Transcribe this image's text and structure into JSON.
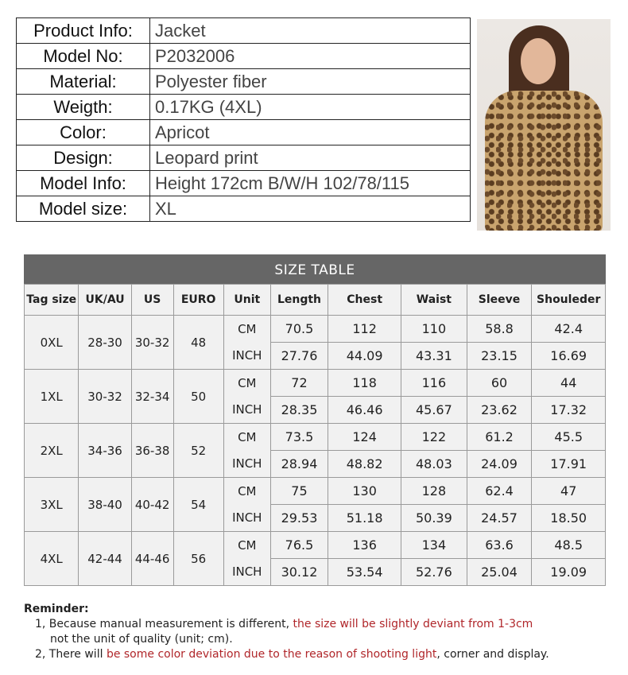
{
  "product_info": [
    {
      "label": "Product Info:",
      "value": "Jacket"
    },
    {
      "label": "Model No:",
      "value": "P2032006"
    },
    {
      "label": "Material:",
      "value": "Polyester fiber"
    },
    {
      "label": "Weigth:",
      "value": "0.17KG (4XL)"
    },
    {
      "label": "Color:",
      "value": "Apricot"
    },
    {
      "label": "Design:",
      "value": "Leopard print"
    },
    {
      "label": "Model Info:",
      "value": "Height 172cm  B/W/H 102/78/115"
    },
    {
      "label": "Model size:",
      "value": "XL"
    }
  ],
  "size_table": {
    "title": "SIZE TABLE",
    "headers": [
      "Tag size",
      "UK/AU",
      "US",
      "EURO",
      "Unit",
      "Length",
      "Chest",
      "Waist",
      "Sleeve",
      "Shouleder"
    ],
    "units": [
      "CM",
      "INCH"
    ],
    "rows": [
      {
        "tag": "0XL",
        "uk": "28-30",
        "us": "30-32",
        "euro": "48",
        "cm": [
          "70.5",
          "112",
          "110",
          "58.8",
          "42.4"
        ],
        "inch": [
          "27.76",
          "44.09",
          "43.31",
          "23.15",
          "16.69"
        ]
      },
      {
        "tag": "1XL",
        "uk": "30-32",
        "us": "32-34",
        "euro": "50",
        "cm": [
          "72",
          "118",
          "116",
          "60",
          "44"
        ],
        "inch": [
          "28.35",
          "46.46",
          "45.67",
          "23.62",
          "17.32"
        ]
      },
      {
        "tag": "2XL",
        "uk": "34-36",
        "us": "36-38",
        "euro": "52",
        "cm": [
          "73.5",
          "124",
          "122",
          "61.2",
          "45.5"
        ],
        "inch": [
          "28.94",
          "48.82",
          "48.03",
          "24.09",
          "17.91"
        ]
      },
      {
        "tag": "3XL",
        "uk": "38-40",
        "us": "40-42",
        "euro": "54",
        "cm": [
          "75",
          "130",
          "128",
          "62.4",
          "47"
        ],
        "inch": [
          "29.53",
          "51.18",
          "50.39",
          "24.57",
          "18.50"
        ]
      },
      {
        "tag": "4XL",
        "uk": "42-44",
        "us": "44-46",
        "euro": "56",
        "cm": [
          "76.5",
          "136",
          "134",
          "63.6",
          "48.5"
        ],
        "inch": [
          "30.12",
          "53.54",
          "52.76",
          "25.04",
          "19.09"
        ]
      }
    ]
  },
  "reminder": {
    "title": "Reminder:",
    "line1_a": "1, Because manual measurement is different, ",
    "line1_red": "the size will be slightly deviant from 1-3cm",
    "line1_b": "not the unit of quality (unit; cm).",
    "line2_a": "2, There will ",
    "line2_red": "be some color deviation due to the reason of shooting light",
    "line2_b": ", corner and display."
  },
  "colors": {
    "header_bar": "#666666",
    "cell_bg": "#f1f1f1",
    "highlight": "#b0262a"
  }
}
